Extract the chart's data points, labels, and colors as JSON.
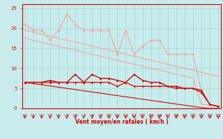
{
  "xlabel": "Vent moyen/en rafales ( km/h )",
  "background_color": "#c8ecec",
  "grid_color": "#a8d8d8",
  "x": [
    0,
    1,
    2,
    3,
    4,
    5,
    6,
    7,
    8,
    9,
    10,
    11,
    12,
    13,
    14,
    15,
    16,
    17,
    18,
    19,
    20,
    21,
    22,
    23
  ],
  "line1_y": [
    21,
    19.5,
    19.5,
    17,
    19.5,
    23.5,
    21,
    19.5,
    19.5,
    19.5,
    19.5,
    13.5,
    19.5,
    13.5,
    15.5,
    17,
    17,
    13.5,
    13.5,
    13.5,
    13.5,
    4.0,
    1.0,
    0.5
  ],
  "line2_y": [
    19.5,
    19.0,
    18.5,
    18.0,
    17.5,
    17.0,
    16.5,
    16.0,
    15.5,
    15.0,
    14.5,
    14.0,
    13.5,
    13.0,
    12.5,
    12.0,
    11.5,
    11.0,
    10.5,
    10.0,
    9.5,
    9.0,
    8.5,
    8.0
  ],
  "line3_y": [
    17.5,
    17.0,
    16.5,
    16.0,
    15.5,
    15.0,
    14.5,
    14.0,
    13.5,
    13.0,
    12.5,
    12.0,
    11.5,
    11.0,
    10.5,
    10.0,
    9.5,
    9.0,
    8.5,
    8.0,
    7.5,
    1.0,
    0.8,
    0.5
  ],
  "line4_y": [
    6.5,
    6.5,
    6.5,
    7.0,
    6.5,
    6.5,
    8.5,
    6.5,
    8.5,
    7.5,
    7.5,
    7.0,
    6.5,
    8.5,
    7.0,
    6.5,
    6.5,
    5.5,
    5.5,
    5.0,
    5.0,
    4.0,
    1.0,
    0.5
  ],
  "line5_y": [
    6.5,
    6.5,
    6.5,
    6.5,
    6.5,
    6.5,
    6.5,
    6.5,
    6.5,
    6.5,
    6.5,
    5.5,
    6.5,
    5.5,
    5.5,
    5.5,
    5.5,
    5.5,
    5.0,
    5.0,
    5.0,
    4.5,
    1.0,
    0.5
  ],
  "line6_y": [
    6.5,
    6.2,
    5.9,
    5.6,
    5.3,
    5.0,
    4.7,
    4.4,
    4.1,
    3.8,
    3.5,
    3.2,
    2.9,
    2.6,
    2.3,
    2.0,
    1.7,
    1.4,
    1.1,
    0.8,
    0.5,
    0.2,
    0.0,
    0.0
  ],
  "color_light_pink": "#f4a0a0",
  "color_dark_red": "#cc0000",
  "color_medium_red": "#dd1111",
  "xlim": [
    -0.3,
    23.3
  ],
  "ylim": [
    0,
    26
  ],
  "yticks": [
    0,
    5,
    10,
    15,
    20,
    25
  ],
  "xticks": [
    0,
    1,
    2,
    3,
    4,
    5,
    6,
    7,
    8,
    9,
    10,
    11,
    12,
    13,
    14,
    15,
    16,
    17,
    18,
    19,
    20,
    21,
    22,
    23
  ]
}
